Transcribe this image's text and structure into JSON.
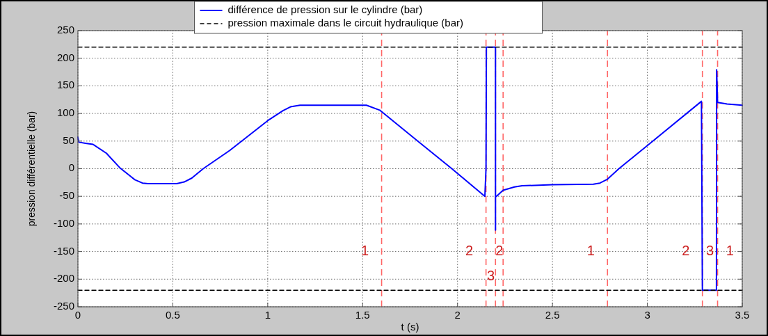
{
  "chart_data": {
    "type": "line",
    "xlabel": "t (s)",
    "ylabel": "pression différentielle (bar)",
    "xlim": [
      0,
      3.5
    ],
    "ylim": [
      -250,
      250
    ],
    "xticks": [
      0,
      0.5,
      1,
      1.5,
      2,
      2.5,
      3,
      3.5
    ],
    "yticks": [
      -250,
      -200,
      -150,
      -100,
      -50,
      0,
      50,
      100,
      150,
      200,
      250
    ],
    "grid": true,
    "legend": "top",
    "marker": "none",
    "series": [
      {
        "name": "différence de pression sur le cylindre (bar)",
        "color": "#0000ff",
        "line_style": "solid",
        "x": [
          0,
          0.005,
          0.04,
          0.08,
          0.15,
          0.22,
          0.3,
          0.34,
          0.37,
          0.52,
          0.56,
          0.6,
          0.66,
          0.8,
          1.0,
          1.08,
          1.12,
          1.17,
          1.52,
          1.59,
          1.79,
          1.97,
          2.144,
          2.15,
          2.152,
          2.2,
          2.2,
          2.2,
          2.205,
          2.24,
          2.3,
          2.34,
          2.5,
          2.716,
          2.75,
          2.79,
          2.85,
          3.0,
          3.285,
          3.29,
          3.292,
          3.364,
          3.365,
          3.37,
          3.42,
          3.5
        ],
        "values": [
          57,
          48,
          46,
          44,
          28,
          2,
          -20,
          -26,
          -27,
          -27,
          -24,
          -17,
          0,
          33,
          87,
          105,
          112,
          115,
          115,
          106,
          50,
          0,
          -50,
          0,
          220,
          220,
          -111,
          -50,
          -50,
          -39,
          -33,
          -31,
          -29,
          -28,
          -26,
          -19,
          0,
          42,
          122,
          -220,
          -220,
          -220,
          179,
          120,
          117,
          115
        ]
      },
      {
        "name": "pression maximale dans le circuit hydraulique (bar)",
        "color": "#000000",
        "line_style": "dashed",
        "x": [
          0,
          3.5
        ],
        "values": [
          220,
          220
        ]
      },
      {
        "color": "#000000",
        "line_style": "dashed",
        "x": [
          0,
          3.5
        ],
        "values": [
          -220,
          -220
        ]
      }
    ],
    "ref_lines": [
      {
        "axis": "x",
        "value": 1.6,
        "color": "#ff6666",
        "line_style": "dashed"
      },
      {
        "axis": "x",
        "value": 2.15,
        "color": "#ff6666",
        "line_style": "dashed"
      },
      {
        "axis": "x",
        "value": 2.2,
        "color": "#ff6666",
        "line_style": "dashed"
      },
      {
        "axis": "x",
        "value": 2.24,
        "color": "#ff6666",
        "line_style": "dashed"
      },
      {
        "axis": "x",
        "value": 2.79,
        "color": "#ff6666",
        "line_style": "dashed"
      },
      {
        "axis": "x",
        "value": 3.29,
        "color": "#ff6666",
        "line_style": "dashed"
      },
      {
        "axis": "x",
        "value": 3.37,
        "color": "#ff6666",
        "line_style": "dashed"
      }
    ],
    "annotations": [
      "1",
      "2",
      "3",
      "2",
      "1",
      "2",
      "3",
      "1"
    ]
  }
}
